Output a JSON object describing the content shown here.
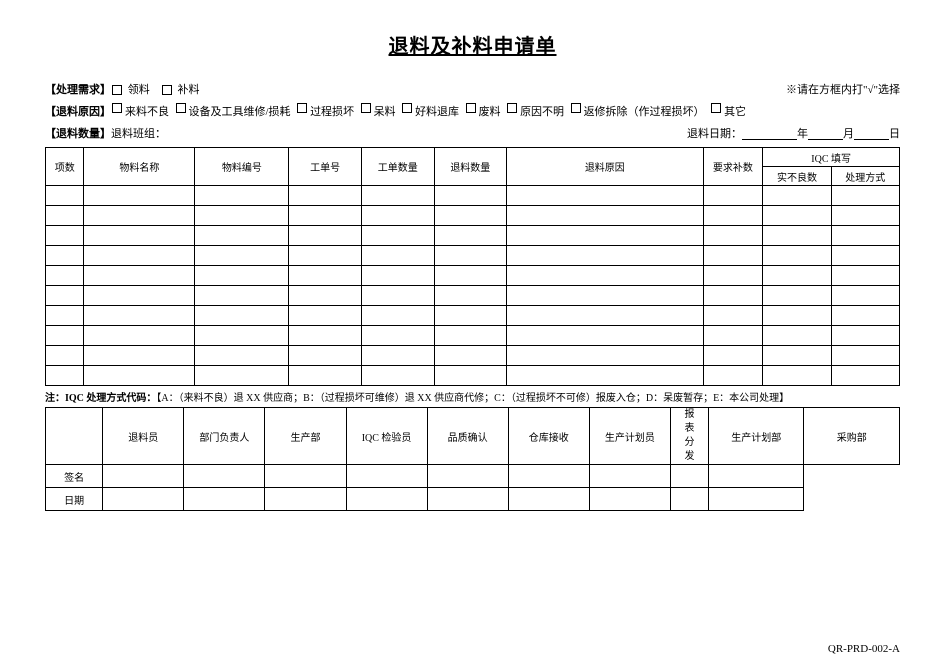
{
  "title": "退料及补料申请单",
  "note_right": "※请在方框内打\"√\"选择",
  "row1_label": "【处理需求】",
  "row1_opts": [
    "领料",
    "补料"
  ],
  "row2_label": "【退料原因】",
  "row2_opts": [
    "来料不良",
    "设备及工具维修/损耗",
    "过程损坏",
    "呆料",
    "好料退库",
    "废料",
    "原因不明",
    "返修拆除（作过程损坏）",
    "其它"
  ],
  "row3_label": "【退料数量】",
  "row3_text": "退料班组：",
  "date_label": "退料日期：",
  "date_y": "年",
  "date_m": "月",
  "date_d": "日",
  "main_headers": {
    "c1": "项数",
    "c2": "物料名称",
    "c3": "物料编号",
    "c4": "工单号",
    "c5": "工单数量",
    "c6": "退料数量",
    "c7": "退料原因",
    "c8": "要求补数",
    "c9_top": "IQC 填写",
    "c9a": "实不良数",
    "c9b": "处理方式"
  },
  "main_rows": 10,
  "main_col_widths": [
    "4.5%",
    "13%",
    "11%",
    "8.5%",
    "8.5%",
    "8.5%",
    "23%",
    "7%",
    "8%",
    "8%"
  ],
  "iqc_note_prefix": "注：IQC 处理方式代码：",
  "iqc_note_body": "【A：（来料不良）退 XX 供应商；B：（过程损坏可维修）退 XX 供应商代修；C：（过程损坏不可修）报废入仓；D：呆废暂存；E：本公司处理】",
  "sign": {
    "row_labels": [
      "签名",
      "日期"
    ],
    "cols_left": [
      "退料员",
      "部门负责人",
      "生产部",
      "IQC 检验员",
      "品质确认",
      "仓库接收",
      "生产计划员"
    ],
    "mid_col": "报表分发",
    "cols_right": [
      "生产计划部",
      "采购部"
    ],
    "left_label_w": "6%",
    "col_w": "8.5%",
    "mid_w": "4%",
    "right_w": "10%"
  },
  "footer": "QR-PRD-002-A"
}
